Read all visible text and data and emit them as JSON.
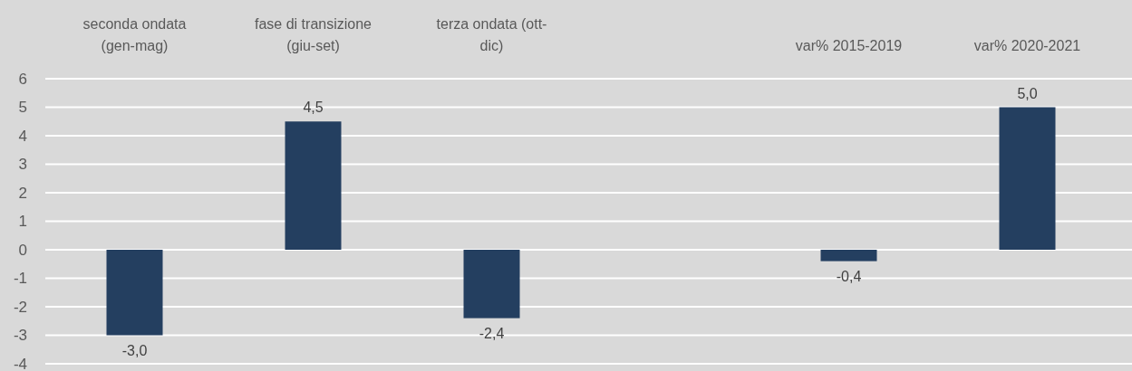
{
  "chart_data": {
    "type": "bar",
    "categories": [
      "seconda ondata (gen-mag)",
      "fase di transizione (giu-set)",
      "terza ondata (ott-dic)",
      null,
      "var% 2015-2019",
      "var% 2020-2021"
    ],
    "values": [
      -3.0,
      4.5,
      -2.4,
      null,
      -0.4,
      5.0
    ],
    "value_labels": [
      "-3,0",
      "4,5",
      "-2,4",
      null,
      "-0,4",
      "5,0"
    ],
    "color": "#243f60",
    "ylim": [
      -4,
      6
    ],
    "yticks": [
      -4,
      -3,
      -2,
      -1,
      0,
      1,
      2,
      3,
      4,
      5,
      6
    ],
    "grid": "y"
  }
}
